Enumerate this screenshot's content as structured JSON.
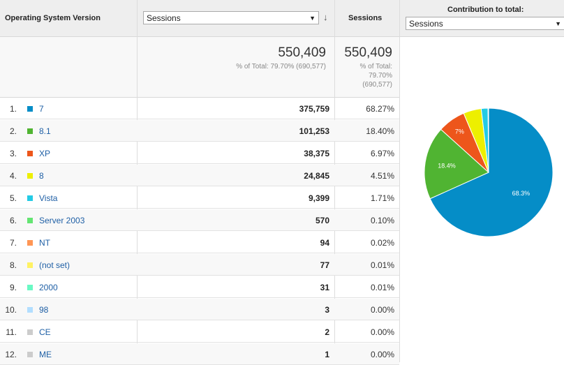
{
  "header": {
    "dimension_label": "Operating System Version",
    "metric_select_value": "Sessions",
    "sort_icon": "arrow-down-icon",
    "sessions_label": "Sessions",
    "contribution_label": "Contribution to total:",
    "contribution_select_value": "Sessions"
  },
  "summary": {
    "sessions_total": "550,409",
    "sessions_note": "% of Total: 79.70% (690,577)",
    "sessions_total_2": "550,409",
    "note_line1": "% of Total:",
    "note_line2": "79.70%",
    "note_line3": "(690,577)"
  },
  "rows": [
    {
      "idx": "1.",
      "name": "7",
      "value": "375,759",
      "pct": "68.27%",
      "color": "#058dc7"
    },
    {
      "idx": "2.",
      "name": "8.1",
      "value": "101,253",
      "pct": "18.40%",
      "color": "#50b432"
    },
    {
      "idx": "3.",
      "name": "XP",
      "value": "38,375",
      "pct": "6.97%",
      "color": "#ed561b"
    },
    {
      "idx": "4.",
      "name": "8",
      "value": "24,845",
      "pct": "4.51%",
      "color": "#edef00"
    },
    {
      "idx": "5.",
      "name": "Vista",
      "value": "9,399",
      "pct": "1.71%",
      "color": "#24cbe5"
    },
    {
      "idx": "6.",
      "name": "Server 2003",
      "value": "570",
      "pct": "0.10%",
      "color": "#64e572"
    },
    {
      "idx": "7.",
      "name": "NT",
      "value": "94",
      "pct": "0.02%",
      "color": "#ff9655"
    },
    {
      "idx": "8.",
      "name": "(not set)",
      "value": "77",
      "pct": "0.01%",
      "color": "#fff263"
    },
    {
      "idx": "9.",
      "name": "2000",
      "value": "31",
      "pct": "0.01%",
      "color": "#6af9c4"
    },
    {
      "idx": "10.",
      "name": "98",
      "value": "3",
      "pct": "0.00%",
      "color": "#b2deff"
    },
    {
      "idx": "11.",
      "name": "CE",
      "value": "2",
      "pct": "0.00%",
      "color": "#cccccc"
    },
    {
      "idx": "12.",
      "name": "ME",
      "value": "1",
      "pct": "0.00%",
      "color": "#cccccc"
    }
  ],
  "chart_data": {
    "type": "pie",
    "slices": [
      {
        "label": "68.3%",
        "value": 68.27,
        "color": "#058dc7"
      },
      {
        "label": "18.4%",
        "value": 18.4,
        "color": "#50b432"
      },
      {
        "label": "7%",
        "value": 6.97,
        "color": "#ed561b"
      },
      {
        "label": "",
        "value": 4.51,
        "color": "#edef00"
      },
      {
        "label": "",
        "value": 1.71,
        "color": "#24cbe5"
      },
      {
        "label": "",
        "value": 0.14,
        "color": "#cccccc"
      }
    ]
  }
}
